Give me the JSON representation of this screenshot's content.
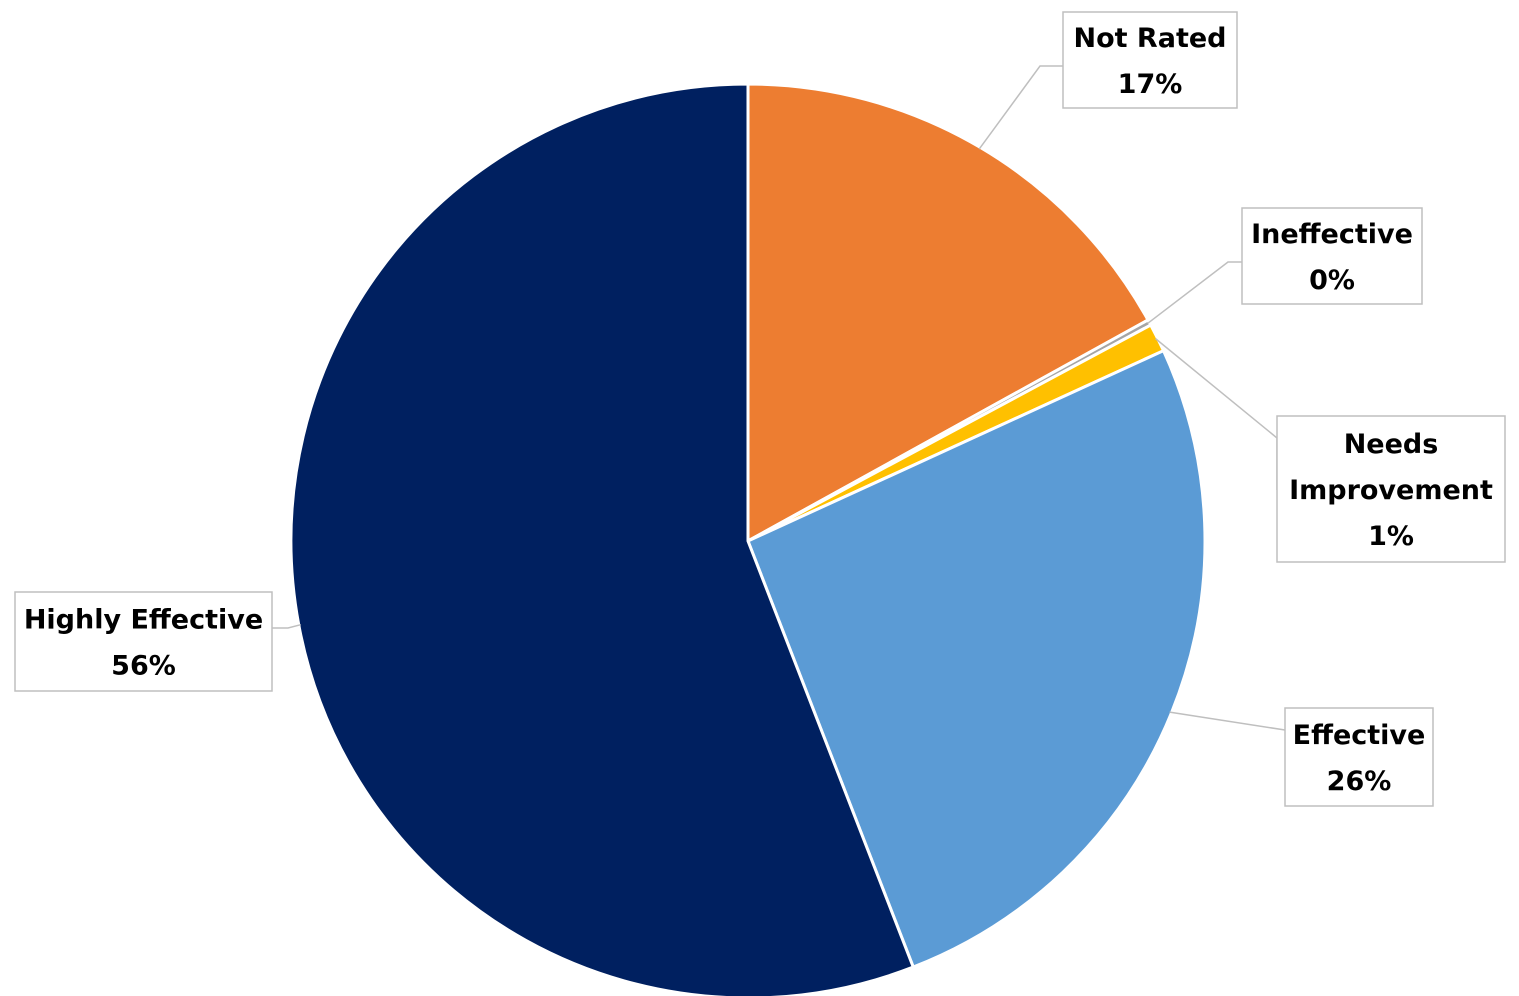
{
  "chart_data": {
    "type": "pie",
    "start_angle_deg": 0,
    "direction": "clockwise",
    "slices": [
      {
        "name": "Not Rated",
        "value": 17,
        "label": "17%",
        "color": "#ED7D31"
      },
      {
        "name": "Ineffective",
        "value": 0.2,
        "label": "0%",
        "color": "#A5A5A5"
      },
      {
        "name": "Needs Improvement",
        "value": 1,
        "label": "1%",
        "color": "#FFC000"
      },
      {
        "name": "Effective",
        "value": 26,
        "label": "26%",
        "color": "#5B9BD5"
      },
      {
        "name": "Highly Effective",
        "value": 56,
        "label": "56%",
        "color": "#002060"
      }
    ]
  }
}
